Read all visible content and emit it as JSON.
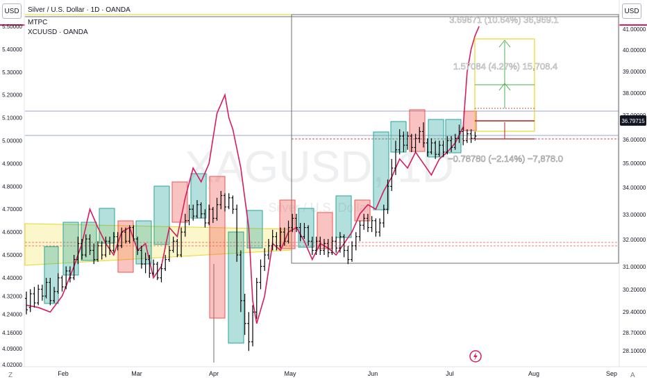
{
  "header": {
    "title": "Silver / U.S. Dollar · 1D · OANDA",
    "series": [
      "MTPC",
      "XCUUSD · OANDA"
    ],
    "currency_left": "USD",
    "currency_right": "USD"
  },
  "watermark": {
    "symbol": "XAGUSD, 1D",
    "subtitle": "Silver / U.S. Dollar"
  },
  "chart_data": {
    "type": "candlestick",
    "left_axis": {
      "label": "USD",
      "ticks": [
        "5.50000",
        "5.40000",
        "5.30000",
        "5.20000",
        "5.10000",
        "5.00000",
        "4.90000",
        "4.80000",
        "4.70000",
        "4.60000",
        "4.50000",
        "4.40000",
        "4.32000",
        "4.24000",
        "4.16000",
        "4.09000",
        "4.02000"
      ]
    },
    "right_axis": {
      "label": "USD",
      "ticks": [
        "41.00000",
        "40.00000",
        "39.00000",
        "38.00000",
        "37.00000",
        "36.00000",
        "35.00000",
        "34.00000",
        "33.00000",
        "32.00000",
        "31.00000",
        "30.20000",
        "29.40000",
        "28.70000",
        "28.10000"
      ],
      "last_price": "36.79715"
    },
    "x_axis": {
      "ticks": [
        "Feb",
        "Mar",
        "Apr",
        "May",
        "Jun",
        "Jul",
        "Aug",
        "Sep"
      ]
    },
    "annotations": {
      "range_top": "3.69671 (10.64%) 36,969.1",
      "target": "1.57084 (4.27%) 15,708.4",
      "stop": "−0.78780 (−2.14%) −7,878.0"
    },
    "colors": {
      "candle": "#000000",
      "overlay_line": "#d81b60",
      "up_box": "#26a69a",
      "down_box": "#ef5350",
      "zone": "#f5e96b",
      "box_line": "#e6d72a",
      "arrow": "#4caf50",
      "stop_line": "#b71c1c"
    },
    "price_series": [
      [
        0,
        4.31,
        4.26,
        4.34,
        4.24
      ],
      [
        1,
        4.27,
        4.33,
        4.35,
        4.25
      ],
      [
        2,
        4.33,
        4.29,
        4.36,
        4.27
      ],
      [
        3,
        4.29,
        4.35,
        4.37,
        4.28
      ],
      [
        4,
        4.35,
        4.32,
        4.37,
        4.3
      ],
      [
        5,
        4.32,
        4.38,
        4.4,
        4.31
      ],
      [
        6,
        4.38,
        4.3,
        4.4,
        4.28
      ],
      [
        7,
        4.3,
        4.34,
        4.36,
        4.29
      ],
      [
        8,
        4.34,
        4.4,
        4.42,
        4.33
      ],
      [
        9,
        4.4,
        4.36,
        4.41,
        4.34
      ],
      [
        10,
        4.36,
        4.43,
        4.45,
        4.35
      ],
      [
        11,
        4.43,
        4.4,
        4.45,
        4.38
      ],
      [
        12,
        4.4,
        4.48,
        4.5,
        4.39
      ],
      [
        13,
        4.48,
        4.55,
        4.58,
        4.46
      ],
      [
        14,
        4.55,
        4.5,
        4.57,
        4.48
      ],
      [
        15,
        4.5,
        4.57,
        4.59,
        4.49
      ],
      [
        16,
        4.57,
        4.52,
        4.59,
        4.5
      ],
      [
        17,
        4.52,
        4.48,
        4.55,
        4.46
      ],
      [
        18,
        4.48,
        4.54,
        4.56,
        4.47
      ],
      [
        19,
        4.54,
        4.5,
        4.56,
        4.48
      ],
      [
        20,
        4.5,
        4.56,
        4.58,
        4.49
      ],
      [
        21,
        4.56,
        4.52,
        4.58,
        4.5
      ],
      [
        22,
        4.52,
        4.58,
        4.6,
        4.51
      ],
      [
        23,
        4.58,
        4.54,
        4.6,
        4.52
      ],
      [
        24,
        4.54,
        4.6,
        4.62,
        4.53
      ],
      [
        25,
        4.6,
        4.56,
        4.62,
        4.55
      ],
      [
        26,
        4.56,
        4.62,
        4.63,
        4.55
      ],
      [
        27,
        4.62,
        4.57,
        4.63,
        4.56
      ],
      [
        28,
        4.57,
        4.52,
        4.58,
        4.5
      ],
      [
        29,
        4.52,
        4.46,
        4.54,
        4.44
      ],
      [
        30,
        4.46,
        4.48,
        4.51,
        4.42
      ],
      [
        31,
        4.48,
        4.42,
        4.5,
        4.4
      ],
      [
        32,
        4.42,
        4.46,
        4.48,
        4.41
      ],
      [
        33,
        4.46,
        4.4,
        4.47,
        4.39
      ],
      [
        34,
        4.4,
        4.44,
        4.46,
        4.38
      ],
      [
        35,
        4.44,
        4.48,
        4.5,
        4.43
      ],
      [
        36,
        4.48,
        4.52,
        4.54,
        4.47
      ],
      [
        37,
        4.52,
        4.56,
        4.58,
        4.51
      ],
      [
        38,
        4.56,
        4.5,
        4.57,
        4.49
      ],
      [
        39,
        4.5,
        4.6,
        4.62,
        4.49
      ],
      [
        40,
        4.6,
        4.65,
        4.68,
        4.58
      ],
      [
        41,
        4.65,
        4.7,
        4.72,
        4.63
      ],
      [
        42,
        4.7,
        4.67,
        4.72,
        4.65
      ],
      [
        43,
        4.67,
        4.72,
        4.74,
        4.66
      ],
      [
        44,
        4.72,
        4.68,
        4.73,
        4.66
      ],
      [
        45,
        4.68,
        4.64,
        4.7,
        4.62
      ],
      [
        46,
        4.64,
        4.7,
        4.72,
        4.63
      ],
      [
        47,
        4.7,
        4.66,
        4.71,
        4.64
      ],
      [
        48,
        4.66,
        4.72,
        4.75,
        4.65
      ],
      [
        49,
        4.72,
        4.76,
        4.78,
        4.7
      ],
      [
        50,
        4.76,
        4.71,
        4.77,
        4.69
      ],
      [
        51,
        4.71,
        4.75,
        4.77,
        4.7
      ],
      [
        52,
        4.75,
        4.7,
        4.76,
        4.68
      ],
      [
        53,
        4.7,
        4.5,
        4.72,
        4.47
      ],
      [
        54,
        4.5,
        4.3,
        4.52,
        4.25
      ],
      [
        55,
        4.3,
        4.2,
        4.33,
        4.15
      ],
      [
        56,
        4.2,
        4.12,
        4.25,
        4.08
      ],
      [
        57,
        4.12,
        4.25,
        4.28,
        4.1
      ],
      [
        58,
        4.25,
        4.38,
        4.4,
        4.22
      ],
      [
        59,
        4.38,
        4.45,
        4.48,
        4.35
      ],
      [
        60,
        4.45,
        4.5,
        4.53,
        4.43
      ],
      [
        61,
        4.5,
        4.54,
        4.57,
        4.48
      ],
      [
        62,
        4.54,
        4.58,
        4.61,
        4.52
      ],
      [
        63,
        4.58,
        4.54,
        4.6,
        4.52
      ],
      [
        64,
        4.54,
        4.6,
        4.62,
        4.53
      ],
      [
        65,
        4.6,
        4.56,
        4.62,
        4.54
      ],
      [
        66,
        4.56,
        4.62,
        4.65,
        4.55
      ],
      [
        67,
        4.62,
        4.66,
        4.68,
        4.6
      ],
      [
        68,
        4.66,
        4.62,
        4.68,
        4.6
      ],
      [
        69,
        4.62,
        4.58,
        4.64,
        4.56
      ],
      [
        70,
        4.58,
        4.62,
        4.64,
        4.57
      ],
      [
        71,
        4.62,
        4.56,
        4.63,
        4.54
      ],
      [
        72,
        4.56,
        4.52,
        4.58,
        4.5
      ],
      [
        73,
        4.52,
        4.56,
        4.58,
        4.5
      ],
      [
        74,
        4.56,
        4.52,
        4.58,
        4.5
      ],
      [
        75,
        4.52,
        4.55,
        4.57,
        4.5
      ],
      [
        76,
        4.55,
        4.51,
        4.57,
        4.49
      ],
      [
        77,
        4.51,
        4.56,
        4.58,
        4.5
      ],
      [
        78,
        4.56,
        4.53,
        4.58,
        4.51
      ],
      [
        79,
        4.53,
        4.58,
        4.6,
        4.51
      ],
      [
        80,
        4.58,
        4.52,
        4.59,
        4.49
      ],
      [
        81,
        4.52,
        4.48,
        4.54,
        4.46
      ],
      [
        82,
        4.48,
        4.54,
        4.56,
        4.47
      ],
      [
        83,
        4.54,
        4.58,
        4.6,
        4.52
      ],
      [
        84,
        4.58,
        4.63,
        4.65,
        4.56
      ],
      [
        85,
        4.63,
        4.66,
        4.68,
        4.61
      ],
      [
        86,
        4.66,
        4.62,
        4.68,
        4.6
      ],
      [
        87,
        4.62,
        4.65,
        4.67,
        4.6
      ],
      [
        88,
        4.65,
        4.6,
        4.66,
        4.58
      ],
      [
        89,
        4.6,
        4.64,
        4.66,
        4.58
      ],
      [
        90,
        4.64,
        4.7,
        4.72,
        4.62
      ],
      [
        91,
        4.7,
        4.8,
        4.83,
        4.68
      ],
      [
        92,
        4.8,
        4.88,
        4.92,
        4.78
      ],
      [
        93,
        4.88,
        4.96,
        5.0,
        4.85
      ],
      [
        94,
        4.96,
        5.02,
        5.05,
        4.94
      ],
      [
        95,
        5.02,
        4.98,
        5.04,
        4.95
      ],
      [
        96,
        4.98,
        5.02,
        5.04,
        4.96
      ],
      [
        97,
        5.02,
        4.97,
        5.03,
        4.95
      ],
      [
        98,
        4.97,
        5.01,
        5.03,
        4.95
      ],
      [
        99,
        5.01,
        5.04,
        5.06,
        4.99
      ],
      [
        100,
        5.04,
        4.99,
        5.08,
        4.97
      ],
      [
        101,
        4.99,
        4.95,
        5.01,
        4.93
      ],
      [
        102,
        4.95,
        4.99,
        5.01,
        4.94
      ],
      [
        103,
        4.99,
        4.94,
        5.0,
        4.92
      ],
      [
        104,
        4.94,
        4.98,
        5.0,
        4.93
      ],
      [
        105,
        4.98,
        4.95,
        5.0,
        4.93
      ],
      [
        106,
        4.95,
        5.0,
        5.02,
        4.94
      ],
      [
        107,
        5.0,
        4.97,
        5.02,
        4.95
      ],
      [
        108,
        4.97,
        5.01,
        5.03,
        4.96
      ],
      [
        109,
        5.01,
        5.04,
        5.07,
        4.99
      ],
      [
        110,
        5.04,
        5.0,
        5.06,
        4.98
      ],
      [
        111,
        5.0,
        5.03,
        5.05,
        4.99
      ],
      [
        112,
        5.03,
        5.01,
        5.05,
        4.99
      ],
      [
        113,
        5.01,
        5.02,
        5.04,
        5.0
      ]
    ],
    "overlay_series": [
      [
        0,
        4.28
      ],
      [
        3,
        4.27
      ],
      [
        6,
        4.25
      ],
      [
        9,
        4.32
      ],
      [
        12,
        4.45
      ],
      [
        14,
        4.55
      ],
      [
        16,
        4.7
      ],
      [
        18,
        4.62
      ],
      [
        20,
        4.55
      ],
      [
        22,
        4.5
      ],
      [
        24,
        4.6
      ],
      [
        26,
        4.62
      ],
      [
        28,
        4.52
      ],
      [
        30,
        4.55
      ],
      [
        32,
        4.4
      ],
      [
        34,
        4.45
      ],
      [
        36,
        4.62
      ],
      [
        38,
        4.58
      ],
      [
        40,
        4.75
      ],
      [
        42,
        4.88
      ],
      [
        44,
        4.82
      ],
      [
        46,
        4.9
      ],
      [
        48,
        5.12
      ],
      [
        50,
        5.2
      ],
      [
        51,
        5.1
      ],
      [
        52,
        5.05
      ],
      [
        54,
        4.88
      ],
      [
        56,
        4.62
      ],
      [
        57,
        4.3
      ],
      [
        58,
        4.2
      ],
      [
        60,
        4.32
      ],
      [
        62,
        4.55
      ],
      [
        64,
        4.52
      ],
      [
        66,
        4.6
      ],
      [
        68,
        4.62
      ],
      [
        70,
        4.56
      ],
      [
        72,
        4.48
      ],
      [
        74,
        4.55
      ],
      [
        76,
        4.53
      ],
      [
        78,
        4.5
      ],
      [
        80,
        4.55
      ],
      [
        82,
        4.6
      ],
      [
        84,
        4.68
      ],
      [
        86,
        4.72
      ],
      [
        88,
        4.7
      ],
      [
        90,
        4.78
      ],
      [
        92,
        4.84
      ],
      [
        94,
        4.92
      ],
      [
        96,
        4.88
      ],
      [
        98,
        4.95
      ],
      [
        100,
        4.9
      ],
      [
        102,
        4.85
      ],
      [
        104,
        4.92
      ],
      [
        106,
        4.95
      ],
      [
        108,
        4.99
      ],
      [
        110,
        5.06
      ],
      [
        111,
        5.3
      ],
      [
        112,
        5.4
      ],
      [
        113,
        5.46
      ],
      [
        114,
        5.5
      ]
    ],
    "grid": false
  }
}
